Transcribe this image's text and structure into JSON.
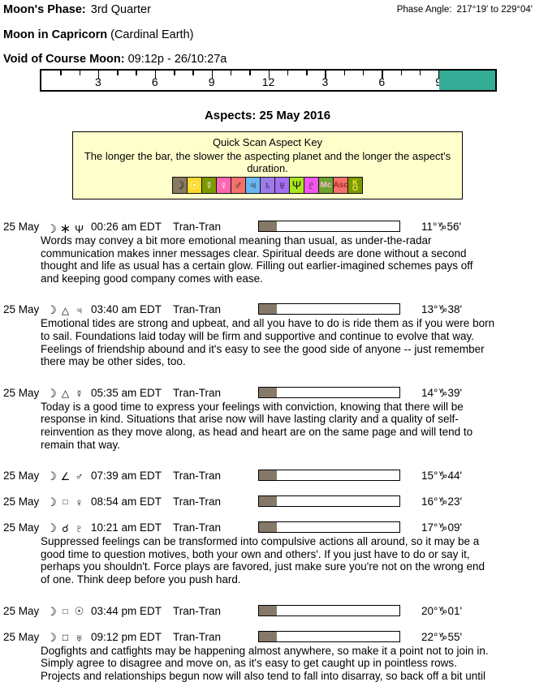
{
  "header": {
    "moons_phase_label": "Moon's Phase:",
    "moons_phase_value": "3rd Quarter",
    "phase_angle_label": "Phase Angle:",
    "phase_angle_value": "217°19' to 229°04'",
    "moon_sign_label": "Moon in Capricorn",
    "moon_sign_value": "(Cardinal Earth)",
    "voc_label": "Void of Course Moon:",
    "voc_value": "09:12p - 26/10:27a"
  },
  "timeline": {
    "hours_total": 24,
    "tick_labels": [
      "3",
      "6",
      "9",
      "12",
      "3",
      "6",
      "9"
    ],
    "voc_start_hour": 21.05,
    "voc_fill_color": "#35ad96"
  },
  "aspects_title": "Aspects: 25 May 2016",
  "key_box": {
    "title": "Quick Scan Aspect Key",
    "subtitle": "The longer the bar, the slower the aspecting planet and the longer the aspect's duration.",
    "icons": [
      {
        "name": "moon",
        "glyph": "☽",
        "bg": "#8a7a63",
        "fg": "#141414"
      },
      {
        "name": "sun",
        "glyph": "☉",
        "bg": "#ffd92b",
        "fg": "#ffffff"
      },
      {
        "name": "mercury",
        "glyph": "☿",
        "bg": "#7c9a01",
        "fg": "#ffffff"
      },
      {
        "name": "venus",
        "glyph": "♀",
        "bg": "#ff66b2",
        "fg": "#ffffff"
      },
      {
        "name": "mars",
        "glyph": "♂",
        "bg": "#f4716b",
        "fg": "#141414"
      },
      {
        "name": "jupiter",
        "glyph": "♃",
        "bg": "#6ab6ee",
        "fg": "#141414"
      },
      {
        "name": "saturn",
        "glyph": "♄",
        "bg": "#9d7cea",
        "fg": "#141414"
      },
      {
        "name": "uranus",
        "glyph": "♅",
        "bg": "#a46ff2",
        "fg": "#141414"
      },
      {
        "name": "neptune",
        "glyph": "Ψ",
        "bg": "#abe51e",
        "fg": "#141414"
      },
      {
        "name": "pluto",
        "glyph": "♇",
        "bg": "#f156ee",
        "fg": "#141414"
      },
      {
        "name": "mc",
        "glyph": "Mc",
        "bg": "#6da32c",
        "fg": "#f8bcd8"
      },
      {
        "name": "asc",
        "glyph": "Asc",
        "bg": "#f4716b",
        "fg": "#a42c24"
      },
      {
        "name": "chiron",
        "glyph": "⚷",
        "bg": "#7c9a01",
        "fg": "#f5e63c",
        "stacked": [
          "K",
          "O"
        ]
      }
    ]
  },
  "aspects": [
    {
      "date": "25 May",
      "moon_glyph": "☽",
      "aspect": "sextile",
      "aspect_glyph": "∗",
      "planet": "neptune",
      "planet_glyph": "Ψ",
      "time": "00:26 am EDT",
      "type": "Tran-Tran",
      "degree": "11°♑56'",
      "bar_pct": 13,
      "description": [
        "Words may convey a bit more emotional meaning than usual, as under-the-radar",
        "communication makes inner messages clear. Spiritual deeds are done without a second",
        "thought and life as usual has a certain glow. Filling out earlier-imagined schemes pays off",
        "and keeping good company comes with ease."
      ]
    },
    {
      "date": "25 May",
      "moon_glyph": "☽",
      "aspect": "trine",
      "aspect_glyph": "△",
      "planet": "jupiter",
      "planet_glyph": "♃",
      "time": "03:40 am EDT",
      "type": "Tran-Tran",
      "degree": "13°♑38'",
      "bar_pct": 13,
      "description": [
        "Emotional tides are strong and upbeat, and all you have to do is ride them as if you were born",
        "to sail. Foundations laid today will be firm and supportive and continue to evolve that way.",
        "Feelings of friendship abound and it's easy to see the good side of anyone -- just remember",
        "there may be other sides, too."
      ]
    },
    {
      "date": "25 May",
      "moon_glyph": "☽",
      "aspect": "trine",
      "aspect_glyph": "△",
      "planet": "mercury",
      "planet_glyph": "☿",
      "time": "05:35 am EDT",
      "type": "Tran-Tran",
      "degree": "14°♑39'",
      "bar_pct": 13,
      "description": [
        "Today is a good time to express your feelings with conviction, knowing that there will be",
        "response in kind. Situations that arise now will have lasting clarity and a quality of self-",
        "reinvention as they move along, as head and heart are on the same page and will tend to",
        "remain that way."
      ]
    },
    {
      "date": "25 May",
      "moon_glyph": "☽",
      "aspect": "semisquare",
      "aspect_glyph": "∠",
      "planet": "mars",
      "planet_glyph": "♂",
      "time": "07:39 am EDT",
      "type": "Tran-Tran",
      "degree": "15°♑44'",
      "bar_pct": 13,
      "description": null
    },
    {
      "date": "25 May",
      "moon_glyph": "☽",
      "aspect": "sesquiquadrate",
      "aspect_glyph": "□",
      "planet": "venus",
      "planet_glyph": "♀",
      "time": "08:54 am EDT",
      "type": "Tran-Tran",
      "degree": "16°♑23'",
      "bar_pct": 13,
      "description": null
    },
    {
      "date": "25 May",
      "moon_glyph": "☽",
      "aspect": "conjunction",
      "aspect_glyph": "☌",
      "planet": "pluto",
      "planet_glyph": "♇",
      "time": "10:21 am EDT",
      "type": "Tran-Tran",
      "degree": "17°♑09'",
      "bar_pct": 13,
      "description": [
        "Suppressed feelings can be transformed into compulsive actions all around, so it may be a",
        "good time to question motives, both your own and others'. If you just have to do or say it,",
        "perhaps you shouldn't. Force plays are favored, just make sure you're not on the wrong end",
        "of one. Think deep before you push hard."
      ]
    },
    {
      "date": "25 May",
      "moon_glyph": "☽",
      "aspect": "sesquiquadrate",
      "aspect_glyph": "□",
      "planet": "sun",
      "planet_glyph": "☉",
      "time": "03:44 pm EDT",
      "type": "Tran-Tran",
      "degree": "20°♑01'",
      "bar_pct": 13,
      "description": null
    },
    {
      "date": "25 May",
      "moon_glyph": "☽",
      "aspect": "square",
      "aspect_glyph": "□",
      "planet": "uranus",
      "planet_glyph": "♅",
      "time": "09:12 pm EDT",
      "type": "Tran-Tran",
      "degree": "22°♑55'",
      "bar_pct": 13,
      "description": [
        "Dogfights and catfights may be happening almost anywhere, so make it a point not to join in.",
        "Simply agree to disagree and move on, as it's easy to get caught up in pointless rows.",
        "Projects and relationships begun now will also tend to fall into disarray, so back off a bit until"
      ]
    }
  ]
}
